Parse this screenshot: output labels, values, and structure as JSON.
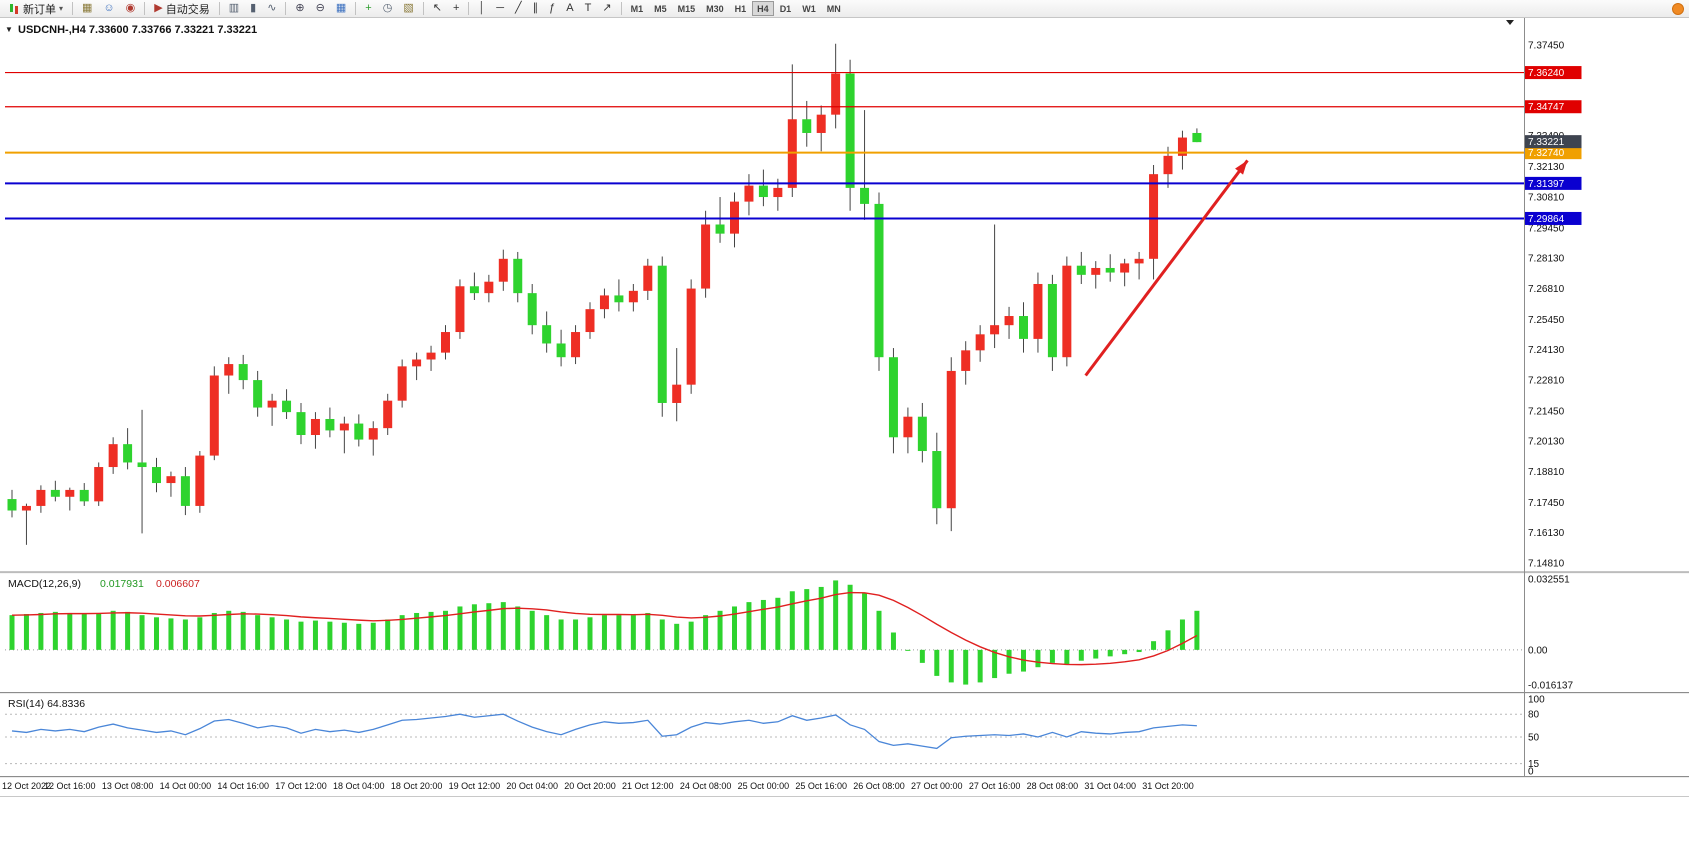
{
  "toolbar": {
    "new_order_label": "新订单",
    "caret": "▾",
    "icon_buttons": [
      {
        "sep": true
      },
      {
        "name": "charts-grid-icon",
        "glyph": "▦",
        "color": "#8a7a3a"
      },
      {
        "name": "profiles-icon",
        "glyph": "☺",
        "color": "#3a6fbf"
      },
      {
        "name": "market-watch-icon",
        "glyph": "◉",
        "color": "#b03a30"
      },
      {
        "sep": true
      },
      {
        "name": "auto-trading-icon",
        "glyph": "▶",
        "color": "#b03a30",
        "label": "自动交易"
      },
      {
        "sep": true
      },
      {
        "name": "bar-chart-icon",
        "glyph": "▥",
        "color": "#556070"
      },
      {
        "name": "candlestick-chart-icon",
        "glyph": "▮",
        "color": "#556070"
      },
      {
        "name": "line-chart-icon",
        "glyph": "∿",
        "color": "#556070"
      },
      {
        "sep": true
      },
      {
        "name": "zoom-in-icon",
        "glyph": "⊕",
        "color": "#444455"
      },
      {
        "name": "zoom-out-icon",
        "glyph": "⊖",
        "color": "#444455"
      },
      {
        "name": "tile-windows-icon",
        "glyph": "▦",
        "color": "#3a6fbf"
      },
      {
        "sep": true
      },
      {
        "name": "indicators-add-icon",
        "glyph": "+",
        "color": "#2e9e2e"
      },
      {
        "name": "period-clock-icon",
        "glyph": "◷",
        "color": "#556070"
      },
      {
        "name": "templates-icon",
        "glyph": "▧",
        "color": "#8a7a3a"
      },
      {
        "sep": true
      },
      {
        "name": "cursor-icon",
        "glyph": "↖",
        "color": "#333333"
      },
      {
        "name": "crosshair-icon",
        "glyph": "+",
        "color": "#333333"
      },
      {
        "sep": true
      },
      {
        "name": "vertical-line-icon",
        "glyph": "│",
        "color": "#333333"
      },
      {
        "name": "horizontal-line-icon",
        "glyph": "─",
        "color": "#333333"
      },
      {
        "name": "trendline-icon",
        "glyph": "╱",
        "color": "#333333"
      },
      {
        "name": "channel-icon",
        "glyph": "∥",
        "color": "#333333"
      },
      {
        "name": "fibonacci-icon",
        "glyph": "ƒ",
        "color": "#333333"
      },
      {
        "name": "text-icon",
        "glyph": "A",
        "color": "#333333"
      },
      {
        "name": "label-icon",
        "glyph": "T",
        "color": "#333333"
      },
      {
        "name": "arrows-icon",
        "glyph": "↗",
        "color": "#333333"
      },
      {
        "sep": true
      }
    ],
    "timeframes": [
      "M1",
      "M5",
      "M15",
      "M30",
      "H1",
      "H4",
      "D1",
      "W1",
      "MN"
    ],
    "active_timeframe": "H4"
  },
  "chart_data": [
    {
      "type": "candlestick",
      "title_marker": "▼",
      "title": "USDCNH-,H4  7.33600 7.33766 7.33221 7.33221",
      "colors": {
        "up": "#ee2e24",
        "down": "#2ed32e",
        "wick": "#444444"
      },
      "ylim": [
        7.145,
        7.3845
      ],
      "y_ticks": [
        "7.37450",
        "7.36130",
        "7.34810",
        "7.33490",
        "7.32130",
        "7.30810",
        "7.29450",
        "7.28130",
        "7.26810",
        "7.25450",
        "7.24130",
        "7.22810",
        "7.21450",
        "7.20130",
        "7.18810",
        "7.17450",
        "7.16130",
        "7.14810"
      ],
      "x_labels": [
        "12 Oct 2022",
        "12 Oct 16:00",
        "13 Oct 08:00",
        "14 Oct 00:00",
        "14 Oct 16:00",
        "17 Oct 12:00",
        "18 Oct 04:00",
        "18 Oct 20:00",
        "19 Oct 12:00",
        "20 Oct 04:00",
        "20 Oct 20:00",
        "21 Oct 12:00",
        "24 Oct 08:00",
        "25 Oct 00:00",
        "25 Oct 16:00",
        "26 Oct 08:00",
        "27 Oct 00:00",
        "27 Oct 16:00",
        "28 Oct 08:00",
        "31 Oct 04:00",
        "31 Oct 20:00"
      ],
      "label_every_n_bars": 4,
      "hlines": [
        {
          "price": 7.3624,
          "label": "7.36240",
          "color": "#e00000",
          "width": 1.2
        },
        {
          "price": 7.34747,
          "label": "7.34747",
          "color": "#e00000",
          "width": 1.2
        },
        {
          "price": 7.3274,
          "label": "7.32740",
          "color": "#f0a000",
          "width": 2
        },
        {
          "price": 7.31397,
          "label": "7.31397",
          "color": "#0a00d0",
          "width": 2
        },
        {
          "price": 7.29864,
          "label": "7.29864",
          "color": "#0a00d0",
          "width": 2
        }
      ],
      "bid_marker": {
        "price": 7.33221,
        "label": "7.33221",
        "bg": "#3e4450"
      },
      "trend_arrow": {
        "from_bar": 74.3,
        "from_price": 7.23,
        "to_bar": 85.5,
        "to_price": 7.324,
        "color": "#e02020"
      },
      "candles": [
        [
          7.176,
          7.18,
          7.168,
          7.171
        ],
        [
          7.171,
          7.174,
          7.156,
          7.173
        ],
        [
          7.173,
          7.182,
          7.17,
          7.18
        ],
        [
          7.18,
          7.184,
          7.175,
          7.177
        ],
        [
          7.177,
          7.181,
          7.171,
          7.18
        ],
        [
          7.18,
          7.183,
          7.173,
          7.175
        ],
        [
          7.175,
          7.192,
          7.173,
          7.19
        ],
        [
          7.19,
          7.203,
          7.187,
          7.2
        ],
        [
          7.2,
          7.207,
          7.189,
          7.192
        ],
        [
          7.192,
          7.215,
          7.161,
          7.19
        ],
        [
          7.19,
          7.194,
          7.179,
          7.183
        ],
        [
          7.183,
          7.188,
          7.177,
          7.186
        ],
        [
          7.186,
          7.19,
          7.169,
          7.173
        ],
        [
          7.173,
          7.197,
          7.17,
          7.195
        ],
        [
          7.195,
          7.234,
          7.193,
          7.23
        ],
        [
          7.23,
          7.238,
          7.222,
          7.235
        ],
        [
          7.235,
          7.239,
          7.224,
          7.228
        ],
        [
          7.228,
          7.232,
          7.212,
          7.216
        ],
        [
          7.216,
          7.222,
          7.208,
          7.219
        ],
        [
          7.219,
          7.224,
          7.211,
          7.214
        ],
        [
          7.214,
          7.218,
          7.2,
          7.204
        ],
        [
          7.204,
          7.214,
          7.198,
          7.211
        ],
        [
          7.211,
          7.216,
          7.203,
          7.206
        ],
        [
          7.206,
          7.212,
          7.196,
          7.209
        ],
        [
          7.209,
          7.213,
          7.199,
          7.202
        ],
        [
          7.202,
          7.21,
          7.195,
          7.207
        ],
        [
          7.207,
          7.222,
          7.204,
          7.219
        ],
        [
          7.219,
          7.237,
          7.216,
          7.234
        ],
        [
          7.234,
          7.24,
          7.228,
          7.237
        ],
        [
          7.237,
          7.243,
          7.232,
          7.24
        ],
        [
          7.24,
          7.252,
          7.237,
          7.249
        ],
        [
          7.249,
          7.272,
          7.246,
          7.269
        ],
        [
          7.269,
          7.275,
          7.263,
          7.266
        ],
        [
          7.266,
          7.274,
          7.262,
          7.271
        ],
        [
          7.271,
          7.285,
          7.267,
          7.281
        ],
        [
          7.281,
          7.284,
          7.262,
          7.266
        ],
        [
          7.266,
          7.27,
          7.248,
          7.252
        ],
        [
          7.252,
          7.258,
          7.24,
          7.244
        ],
        [
          7.244,
          7.25,
          7.234,
          7.238
        ],
        [
          7.238,
          7.252,
          7.235,
          7.249
        ],
        [
          7.249,
          7.262,
          7.246,
          7.259
        ],
        [
          7.259,
          7.268,
          7.255,
          7.265
        ],
        [
          7.265,
          7.272,
          7.258,
          7.262
        ],
        [
          7.262,
          7.27,
          7.258,
          7.267
        ],
        [
          7.267,
          7.281,
          7.263,
          7.278
        ],
        [
          7.278,
          7.282,
          7.212,
          7.218
        ],
        [
          7.218,
          7.242,
          7.21,
          7.226
        ],
        [
          7.226,
          7.272,
          7.222,
          7.268
        ],
        [
          7.268,
          7.302,
          7.264,
          7.296
        ],
        [
          7.296,
          7.308,
          7.288,
          7.292
        ],
        [
          7.292,
          7.31,
          7.286,
          7.306
        ],
        [
          7.306,
          7.318,
          7.3,
          7.313
        ],
        [
          7.313,
          7.32,
          7.304,
          7.308
        ],
        [
          7.308,
          7.316,
          7.302,
          7.312
        ],
        [
          7.312,
          7.366,
          7.308,
          7.342
        ],
        [
          7.342,
          7.35,
          7.33,
          7.336
        ],
        [
          7.336,
          7.348,
          7.328,
          7.344
        ],
        [
          7.344,
          7.375,
          7.338,
          7.362
        ],
        [
          7.362,
          7.368,
          7.302,
          7.312
        ],
        [
          7.312,
          7.346,
          7.298,
          7.305
        ],
        [
          7.305,
          7.31,
          7.232,
          7.238
        ],
        [
          7.238,
          7.242,
          7.196,
          7.203
        ],
        [
          7.203,
          7.216,
          7.196,
          7.212
        ],
        [
          7.212,
          7.218,
          7.192,
          7.197
        ],
        [
          7.197,
          7.205,
          7.165,
          7.172
        ],
        [
          7.172,
          7.238,
          7.162,
          7.232
        ],
        [
          7.232,
          7.245,
          7.226,
          7.241
        ],
        [
          7.241,
          7.252,
          7.236,
          7.248
        ],
        [
          7.248,
          7.296,
          7.242,
          7.252
        ],
        [
          7.252,
          7.26,
          7.246,
          7.256
        ],
        [
          7.256,
          7.262,
          7.24,
          7.246
        ],
        [
          7.246,
          7.275,
          7.24,
          7.27
        ],
        [
          7.27,
          7.274,
          7.232,
          7.238
        ],
        [
          7.238,
          7.282,
          7.234,
          7.278
        ],
        [
          7.278,
          7.284,
          7.27,
          7.274
        ],
        [
          7.274,
          7.28,
          7.268,
          7.277
        ],
        [
          7.277,
          7.283,
          7.271,
          7.275
        ],
        [
          7.275,
          7.281,
          7.269,
          7.279
        ],
        [
          7.279,
          7.284,
          7.272,
          7.281
        ],
        [
          7.281,
          7.322,
          7.272,
          7.318
        ],
        [
          7.318,
          7.33,
          7.312,
          7.326
        ],
        [
          7.326,
          7.337,
          7.32,
          7.334
        ],
        [
          7.336,
          7.338,
          7.332,
          7.332
        ]
      ]
    },
    {
      "type": "bar",
      "name": "MACD(12,26,9)",
      "value_main": "0.017931",
      "value_signal": "0.006607",
      "colors": {
        "hist": "#2ed32e",
        "signal": "#e02020"
      },
      "ylim": [
        -0.0185,
        0.0345
      ],
      "y_ticks": [
        {
          "v": 0.032551,
          "t": "0.032551"
        },
        {
          "v": 0,
          "t": "0.00"
        },
        {
          "v": -0.016137,
          "t": "-0.016137"
        }
      ],
      "hist": [
        0.016,
        0.0165,
        0.017,
        0.0175,
        0.017,
        0.0165,
        0.017,
        0.018,
        0.0175,
        0.016,
        0.015,
        0.0145,
        0.014,
        0.015,
        0.017,
        0.018,
        0.0175,
        0.016,
        0.015,
        0.014,
        0.013,
        0.0135,
        0.013,
        0.0125,
        0.012,
        0.0125,
        0.014,
        0.016,
        0.017,
        0.0175,
        0.018,
        0.02,
        0.021,
        0.0215,
        0.022,
        0.02,
        0.018,
        0.016,
        0.014,
        0.014,
        0.015,
        0.016,
        0.016,
        0.016,
        0.017,
        0.014,
        0.012,
        0.013,
        0.016,
        0.018,
        0.02,
        0.022,
        0.023,
        0.024,
        0.027,
        0.028,
        0.029,
        0.032,
        0.03,
        0.026,
        0.018,
        0.008,
        0.0,
        -0.006,
        -0.012,
        -0.015,
        -0.016,
        -0.015,
        -0.013,
        -0.011,
        -0.01,
        -0.008,
        -0.006,
        -0.007,
        -0.005,
        -0.004,
        -0.003,
        -0.002,
        -0.001,
        0.004,
        0.009,
        0.014,
        0.018
      ],
      "signal": [
        0.016,
        0.0161,
        0.0163,
        0.0166,
        0.0167,
        0.0167,
        0.0168,
        0.017,
        0.0171,
        0.0169,
        0.0165,
        0.0161,
        0.0157,
        0.0156,
        0.0159,
        0.0163,
        0.0166,
        0.0165,
        0.0162,
        0.0158,
        0.0152,
        0.0148,
        0.0145,
        0.0141,
        0.0137,
        0.0134,
        0.0136,
        0.014,
        0.0146,
        0.0152,
        0.0158,
        0.0166,
        0.0175,
        0.0182,
        0.019,
        0.0192,
        0.0189,
        0.0184,
        0.0175,
        0.0168,
        0.0164,
        0.0163,
        0.0163,
        0.0162,
        0.0164,
        0.0159,
        0.0151,
        0.0147,
        0.015,
        0.0156,
        0.0165,
        0.0176,
        0.0187,
        0.0197,
        0.0212,
        0.0226,
        0.0238,
        0.0255,
        0.0264,
        0.0263,
        0.0252,
        0.0228,
        0.0195,
        0.0158,
        0.0118,
        0.008,
        0.0045,
        0.0014,
        -0.0012,
        -0.0032,
        -0.0047,
        -0.0057,
        -0.0063,
        -0.0067,
        -0.0068,
        -0.0066,
        -0.0062,
        -0.0055,
        -0.0046,
        -0.0028,
        -0.0003,
        0.003,
        0.0066
      ]
    },
    {
      "type": "line",
      "name": "RSI(14)",
      "value": "64.8336",
      "color": "#4a86d8",
      "ylim": [
        0,
        100
      ],
      "levels": [
        80,
        50,
        15
      ],
      "y_ticks": [
        {
          "v": 100,
          "t": "100"
        },
        {
          "v": 80,
          "t": "80"
        },
        {
          "v": 50,
          "t": "50"
        },
        {
          "v": 15,
          "t": "15"
        },
        {
          "v": 0,
          "t": "0"
        }
      ],
      "values": [
        58,
        56,
        60,
        58,
        60,
        57,
        63,
        67,
        62,
        59,
        56,
        58,
        53,
        61,
        71,
        73,
        68,
        62,
        65,
        62,
        55,
        60,
        57,
        59,
        56,
        60,
        66,
        72,
        73,
        75,
        77,
        80,
        76,
        78,
        80,
        71,
        63,
        57,
        53,
        60,
        66,
        70,
        68,
        69,
        72,
        51,
        53,
        63,
        69,
        67,
        70,
        72,
        68,
        70,
        78,
        72,
        75,
        79,
        66,
        60,
        44,
        39,
        41,
        38,
        35,
        49,
        51,
        52,
        53,
        52,
        54,
        50,
        56,
        50,
        57,
        55,
        54,
        56,
        57,
        62,
        64,
        66,
        64.8
      ]
    }
  ]
}
